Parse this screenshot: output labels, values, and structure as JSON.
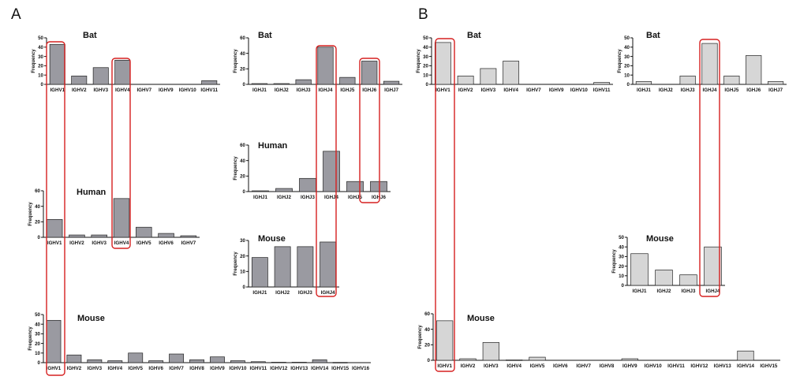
{
  "panel_labels": [
    "A",
    "B"
  ],
  "y_axis_label": "Frequency",
  "colors": {
    "panel_a_bar": "#9a9aa1",
    "panel_b_bar": "#d6d6d6",
    "bar_edge": "#222222",
    "highlight": "#d62020"
  },
  "chart_data": [
    {
      "id": "a-bat-ighv",
      "type": "bar",
      "panel": "A",
      "title": "Bat",
      "ylabel": "Frequency",
      "ylim": [
        0,
        50
      ],
      "yticks": [
        0,
        10,
        20,
        30,
        40,
        50
      ],
      "categories": [
        "IGHV1",
        "IGHV2",
        "IGHV3",
        "IGHV4",
        "IGHV7",
        "IGHV9",
        "IGHV10",
        "IGHV11"
      ],
      "values": [
        43,
        9,
        18,
        26,
        0,
        0,
        0,
        4
      ],
      "highlighted": [
        "IGHV1",
        "IGHV4"
      ]
    },
    {
      "id": "a-bat-ighj",
      "type": "bar",
      "panel": "A",
      "title": "Bat",
      "ylabel": "Frequency",
      "ylim": [
        0,
        60
      ],
      "yticks": [
        0,
        20,
        40,
        60
      ],
      "categories": [
        "IGHJ1",
        "IGHJ2",
        "IGHJ3",
        "IGHJ4",
        "IGHJ5",
        "IGHJ6",
        "IGHJ7"
      ],
      "values": [
        1,
        1,
        6,
        48,
        9,
        30,
        4
      ],
      "highlighted": [
        "IGHJ4",
        "IGHJ6"
      ]
    },
    {
      "id": "a-human-ighj",
      "type": "bar",
      "panel": "A",
      "title": "Human",
      "ylabel": "Frequency",
      "ylim": [
        0,
        60
      ],
      "yticks": [
        0,
        20,
        40,
        60
      ],
      "categories": [
        "IGHJ1",
        "IGHJ2",
        "IGHJ3",
        "IGHJ4",
        "IGHJ5",
        "IGHJ6"
      ],
      "values": [
        1,
        4,
        17,
        52,
        13,
        13
      ],
      "highlighted": [
        "IGHJ4",
        "IGHJ6"
      ]
    },
    {
      "id": "a-human-ighv",
      "type": "bar",
      "panel": "A",
      "title": "Human",
      "ylabel": "Frequency",
      "ylim": [
        0,
        60
      ],
      "yticks": [
        0,
        20,
        40,
        60
      ],
      "categories": [
        "IGHV1",
        "IGHV2",
        "IGHV3",
        "IGHV4",
        "IGHV5",
        "IGHV6",
        "IGHV7"
      ],
      "values": [
        23,
        3,
        3,
        50,
        13,
        5,
        2
      ],
      "highlighted": [
        "IGHV1",
        "IGHV4"
      ]
    },
    {
      "id": "a-mouse-ighj",
      "type": "bar",
      "panel": "A",
      "title": "Mouse",
      "ylabel": "Frequency",
      "ylim": [
        0,
        30
      ],
      "yticks": [
        0,
        10,
        20,
        30
      ],
      "categories": [
        "IGHJ1",
        "IGHJ2",
        "IGHJ3",
        "IGHJ4"
      ],
      "values": [
        19,
        26,
        26,
        29
      ],
      "highlighted": [
        "IGHJ4"
      ]
    },
    {
      "id": "a-mouse-ighv",
      "type": "bar",
      "panel": "A",
      "title": "Mouse",
      "ylabel": "Frequency",
      "ylim": [
        0,
        50
      ],
      "yticks": [
        0,
        10,
        20,
        30,
        40,
        50
      ],
      "categories": [
        "IGHV1",
        "IGHV2",
        "IGHV3",
        "IGHV4",
        "IGHV5",
        "IGHV6",
        "IGHV7",
        "IGHV8",
        "IGHV9",
        "IGHV10",
        "IGHV11",
        "IGHV12",
        "IGHV13",
        "IGHV14",
        "IGHV15",
        "IGHV16"
      ],
      "values": [
        44,
        8,
        3,
        2,
        10,
        2,
        9,
        3,
        6,
        2,
        1,
        0.5,
        0.5,
        3,
        0.3,
        0
      ],
      "highlighted": [
        "IGHV1"
      ]
    },
    {
      "id": "b-bat-ighv",
      "type": "bar",
      "panel": "B",
      "title": "Bat",
      "ylabel": "Frequency",
      "ylim": [
        0,
        50
      ],
      "yticks": [
        0,
        10,
        20,
        30,
        40,
        50
      ],
      "categories": [
        "IGHV1",
        "IGHV2",
        "IGHV3",
        "IGHV4",
        "IGHV7",
        "IGHV9",
        "IGHV10",
        "IGHV11"
      ],
      "values": [
        45,
        9,
        17,
        25,
        0,
        0,
        0,
        2
      ],
      "highlighted": [
        "IGHV1"
      ]
    },
    {
      "id": "b-bat-ighj",
      "type": "bar",
      "panel": "B",
      "title": "Bat",
      "ylabel": "Frequency",
      "ylim": [
        0,
        50
      ],
      "yticks": [
        0,
        10,
        20,
        30,
        40,
        50
      ],
      "categories": [
        "IGHJ1",
        "IGHJ2",
        "IGHJ3",
        "IGHJ4",
        "IGHJ5",
        "IGHJ6",
        "IGHJ7"
      ],
      "values": [
        3,
        0,
        9,
        44,
        9,
        31,
        3
      ],
      "highlighted": [
        "IGHJ4"
      ]
    },
    {
      "id": "b-mouse-ighj",
      "type": "bar",
      "panel": "B",
      "title": "Mouse",
      "ylabel": "Frequency",
      "ylim": [
        0,
        50
      ],
      "yticks": [
        0,
        10,
        20,
        30,
        40,
        50
      ],
      "categories": [
        "IGHJ1",
        "IGHJ2",
        "IGHJ3",
        "IGHJ4"
      ],
      "values": [
        33,
        16,
        11,
        40
      ],
      "highlighted": [
        "IGHJ4"
      ]
    },
    {
      "id": "b-mouse-ighv",
      "type": "bar",
      "panel": "B",
      "title": "Mouse",
      "ylabel": "Frequency",
      "ylim": [
        0,
        60
      ],
      "yticks": [
        0,
        20,
        40,
        60
      ],
      "categories": [
        "IGHV1",
        "IGHV2",
        "IGHV3",
        "IGHV4",
        "IGHV5",
        "IGHV6",
        "IGHV7",
        "IGHV8",
        "IGHV9",
        "IGHV10",
        "IGHV11",
        "IGHV12",
        "IGHV13",
        "IGHV14",
        "IGHV15"
      ],
      "values": [
        51,
        2,
        23,
        0.5,
        4,
        0,
        0,
        0,
        2,
        0,
        0,
        0,
        0,
        12,
        0
      ],
      "highlighted": [
        "IGHV1"
      ]
    }
  ]
}
